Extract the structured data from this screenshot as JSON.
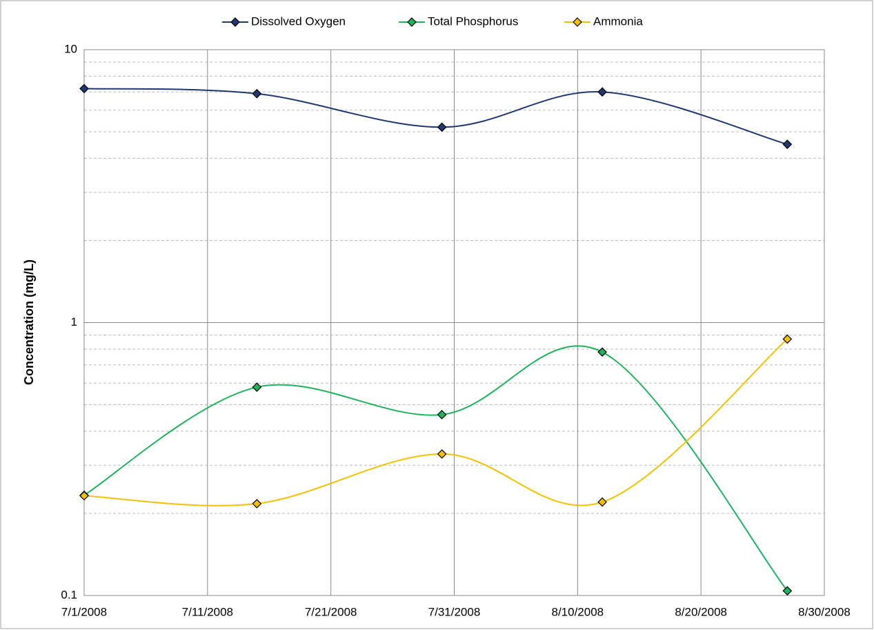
{
  "chart_data": {
    "type": "line",
    "y_label": "Concentration (mg/L)",
    "x": [
      "7/1/2008",
      "7/15/2008",
      "7/30/2008",
      "8/12/2008",
      "8/27/2008"
    ],
    "series": [
      {
        "name": "Dissolved Oxygen",
        "color": "#1f3870",
        "values": [
          7.2,
          6.9,
          5.2,
          7.0,
          4.5
        ]
      },
      {
        "name": "Total Phosphorus",
        "color": "#1db35a",
        "values": [
          0.233,
          0.58,
          0.46,
          0.78,
          0.104
        ]
      },
      {
        "name": "Ammonia",
        "color": "#f5c000",
        "values": [
          0.232,
          0.217,
          0.33,
          0.22,
          0.87
        ]
      }
    ],
    "xlim": [
      "7/1/2008",
      "8/30/2008"
    ],
    "xticks": [
      "7/1/2008",
      "7/11/2008",
      "7/21/2008",
      "7/31/2008",
      "8/10/2008",
      "8/20/2008",
      "8/30/2008"
    ],
    "ylim": [
      0.1,
      10
    ],
    "yticks": [
      0.1,
      1,
      10
    ],
    "log_y": true,
    "grid": true,
    "minor_grid": true,
    "smooth": true,
    "legend": "top"
  }
}
